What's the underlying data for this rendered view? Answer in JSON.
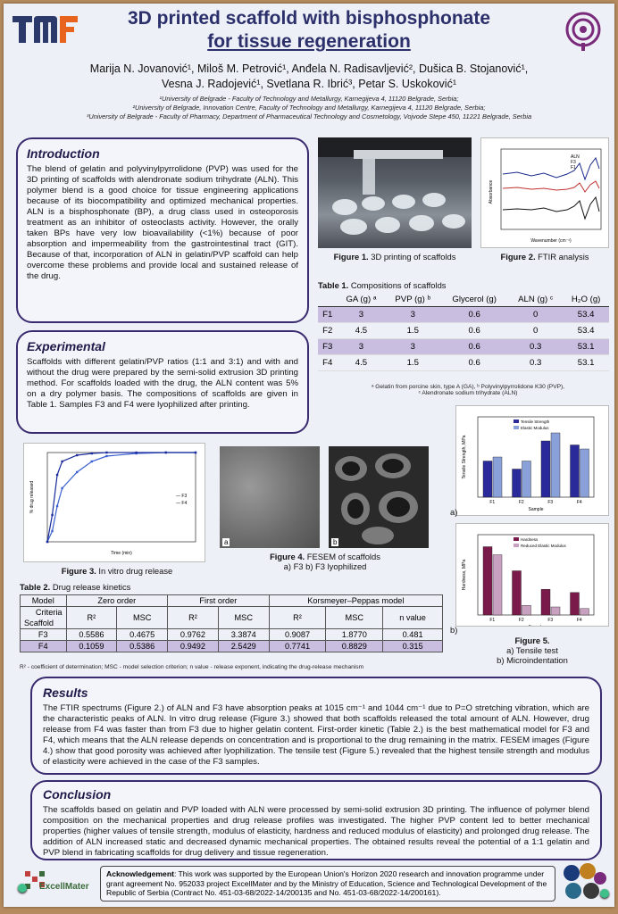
{
  "header": {
    "title_line1": "3D printed scaffold with bisphosphonate",
    "title_line2": "for tissue regeneration",
    "authors_line1": "Marija N. Jovanović¹, Miloš M. Petrović¹, Anđela N. Radisavljević², Dušica B. Stojanović¹,",
    "authors_line2": "Vesna J. Radojević¹, Svetlana R. Ibrić³, Petar S. Uskoković¹",
    "affil1": "¹University of Belgrade - Faculty of Technology and Metallurgy, Karnegijeva 4, 11120 Belgrade, Serbia;",
    "affil2": "²University of Belgrade, Innovation Centre, Faculty of Technology and Metallurgy, Karnegijeva 4, 11120 Belgrade, Serbia;",
    "affil3": "³University of Belgrade - Faculty of Pharmacy, Department of Pharmaceutical Technology and Cosmetology, Vojvode Stepe 450, 11221 Belgrade, Serbia",
    "colors": {
      "title": "#2b2f6a",
      "box_border": "#3a2a70",
      "highlight": "#c9bde0"
    }
  },
  "introduction": {
    "heading": "Introduction",
    "text": "The blend of gelatin and polyvinylpyrrolidone (PVP) was used for the 3D printing of scaffolds with alendronate sodium trihydrate (ALN). This polymer blend is a good choice for tissue engineering applications because of its biocompatibility and optimized mechanical properties. ALN is a bisphosphonate (BP), a drug class used in osteoporosis treatment as an inhibitor of osteoclasts activity. However, the orally taken BPs have very low bioavailability (<1%) because of poor absorption and impermeability from the gastrointestinal tract (GIT). Because of that, incorporation of ALN in gelatin/PVP scaffold can help overcome these problems and provide local and sustained release of the drug."
  },
  "experimental": {
    "heading": "Experimental",
    "text": "Scaffolds with different gelatin/PVP ratios (1:1 and 3:1) and with and without the drug were prepared by the semi-solid extrusion 3D printing method. For scaffolds loaded with the drug, the ALN content was 5% on a dry polymer basis. The compositions of scaffolds are given in Table 1. Samples F3 and F4 were lyophilized after printing."
  },
  "fig1": {
    "caption_bold": "Figure 1.",
    "caption": " 3D printing of scaffolds"
  },
  "fig2": {
    "caption_bold": "Figure 2.",
    "caption": " FTIR analysis",
    "legend": [
      "ALN",
      "F3",
      "F1"
    ],
    "xlabel": "Wavenumber (cm⁻¹)",
    "ylabel": "Absorbance"
  },
  "table1": {
    "title_bold": "Table 1.",
    "title": " Compositions of scaffolds",
    "headers": [
      "",
      "GA (g) ᵃ",
      "PVP (g) ᵇ",
      "Glycerol (g)",
      "ALN (g) ᶜ",
      "H₂O (g)"
    ],
    "rows": [
      [
        "F1",
        "3",
        "3",
        "0.6",
        "0",
        "53.4"
      ],
      [
        "F2",
        "4.5",
        "1.5",
        "0.6",
        "0",
        "53.4"
      ],
      [
        "F3",
        "3",
        "3",
        "0.6",
        "0.3",
        "53.1"
      ],
      [
        "F4",
        "4.5",
        "1.5",
        "0.6",
        "0.3",
        "53.1"
      ]
    ],
    "note1": "ᵃ Gelatin from porcine skin, type A (GA), ᵇ Polyvinylpyrrolidone K30 (PVP),",
    "note2": "ᶜ Alendronate sodium trihydrate (ALN)"
  },
  "chart_data": [
    {
      "type": "line",
      "title": "",
      "xlabel": "Time (min)",
      "ylabel": "% drug released",
      "ylim": [
        0,
        100
      ],
      "series": [
        {
          "name": "F3",
          "x": [
            0,
            10,
            20,
            30,
            60,
            90,
            120,
            180,
            240,
            300
          ],
          "values": [
            0,
            12,
            40,
            60,
            78,
            90,
            96,
            99,
            100,
            100
          ]
        },
        {
          "name": "F4",
          "x": [
            0,
            10,
            20,
            30,
            60,
            90,
            120,
            180,
            240,
            300
          ],
          "values": [
            0,
            30,
            75,
            90,
            97,
            99,
            100,
            100,
            100,
            100
          ]
        }
      ]
    },
    {
      "type": "bar",
      "title": "",
      "xlabel": "Sample",
      "ylabel": "Tensile Strength, MPa",
      "categories": [
        "F1",
        "F2",
        "F3",
        "F4"
      ],
      "series": [
        {
          "name": "Tensile Strength",
          "values": [
            0.9,
            0.7,
            1.4,
            1.3
          ]
        },
        {
          "name": "Elastic Modulus",
          "values": [
            1.0,
            0.9,
            1.6,
            1.2
          ]
        }
      ]
    },
    {
      "type": "bar",
      "title": "",
      "xlabel": "Sample",
      "ylabel": "Hardness, MPa",
      "categories": [
        "F1",
        "F2",
        "F3",
        "F4"
      ],
      "series": [
        {
          "name": "Hardness",
          "values": [
            8.5,
            5.5,
            3.2,
            2.8
          ]
        },
        {
          "name": "Reduced Elastic Modulus",
          "values": [
            7.5,
            1.2,
            1.0,
            0.8
          ]
        }
      ]
    }
  ],
  "fig3": {
    "caption_bold": "Figure 3.",
    "caption": " In vitro drug release"
  },
  "fig4": {
    "caption_bold": "Figure 4.",
    "caption": " FESEM of scaffolds",
    "sub": "a) F3 b) F3 lyophilized",
    "a": "a",
    "b": "b"
  },
  "fig5": {
    "caption_bold": "Figure 5.",
    "line2": "a) Tensile test",
    "line3": "b) Microindentation",
    "a": "a)",
    "b": "b)"
  },
  "table2": {
    "title_bold": "Table 2.",
    "title": " Drug release kinetics",
    "model": "Model",
    "criteria": "Criteria",
    "scaffold": "Scaffold",
    "groups": [
      "Zero order",
      "First order",
      "Korsmeyer–Peppas model"
    ],
    "sub": [
      "R²",
      "MSC",
      "R²",
      "MSC",
      "R²",
      "MSC",
      "n value"
    ],
    "rows": [
      [
        "F3",
        "0.5586",
        "0.4675",
        "0.9762",
        "3.3874",
        "0.9087",
        "1.8770",
        "0.481"
      ],
      [
        "F4",
        "0.1059",
        "0.5386",
        "0.9492",
        "2.5429",
        "0.7741",
        "0.8829",
        "0.315"
      ]
    ],
    "note": "R² - coefficient of determination; MSC - model selection criterion; n value - release exponent, indicating the drug-release mechanism"
  },
  "results": {
    "heading": "Results",
    "text": "The FTIR spectrums (Figure 2.) of ALN and F3 have absorption peaks at 1015 cm⁻¹ and 1044 cm⁻¹ due to P=O stretching vibration, which are the characteristic peaks of ALN. In vitro drug release (Figure 3.) showed that both scaffolds released the total amount of ALN. However, drug release from F4 was faster than from F3 due to higher gelatin content. First-order kinetic (Table 2.) is the best mathematical model for F3 and F4, which means that the ALN release depends on concentration and is proportional to the drug remaining in the matrix. FESEM images (Figure 4.) show that good porosity was achieved after lyophilization. The tensile test (Figure 5.) revealed that the highest tensile strength and modulus of elasticity were achieved in the case of the F3 samples."
  },
  "conclusion": {
    "heading": "Conclusion",
    "text": "The scaffolds based on gelatin and PVP loaded with ALN were processed by semi-solid extrusion 3D printing. The influence of polymer blend composition on the mechanical properties and drug release profiles was investigated. The higher PVP content led to better mechanical properties (higher values of tensile strength, modulus of elasticity, hardness and reduced modulus of elasticity) and prolonged drug release. The addition of ALN increased static and decreased dynamic mechanical properties. The obtained results reveal the potential of a 1:1 gelatin and PVP blend in fabricating scaffolds for drug delivery and tissue regeneration."
  },
  "footer": {
    "logo": "ExcellMater",
    "ack_bold": "Acknowledgement",
    "ack": ": This work was supported by the European Union's Horizon 2020 research and innovation programme under grant agreement No. 952033 project ExcellMater and by the Ministry of Education, Science and Technological Development of the Republic of Serbia (Contract No. 451-03-68/2022-14/200135 and No. 451-03-68/2022-14/200161)."
  }
}
